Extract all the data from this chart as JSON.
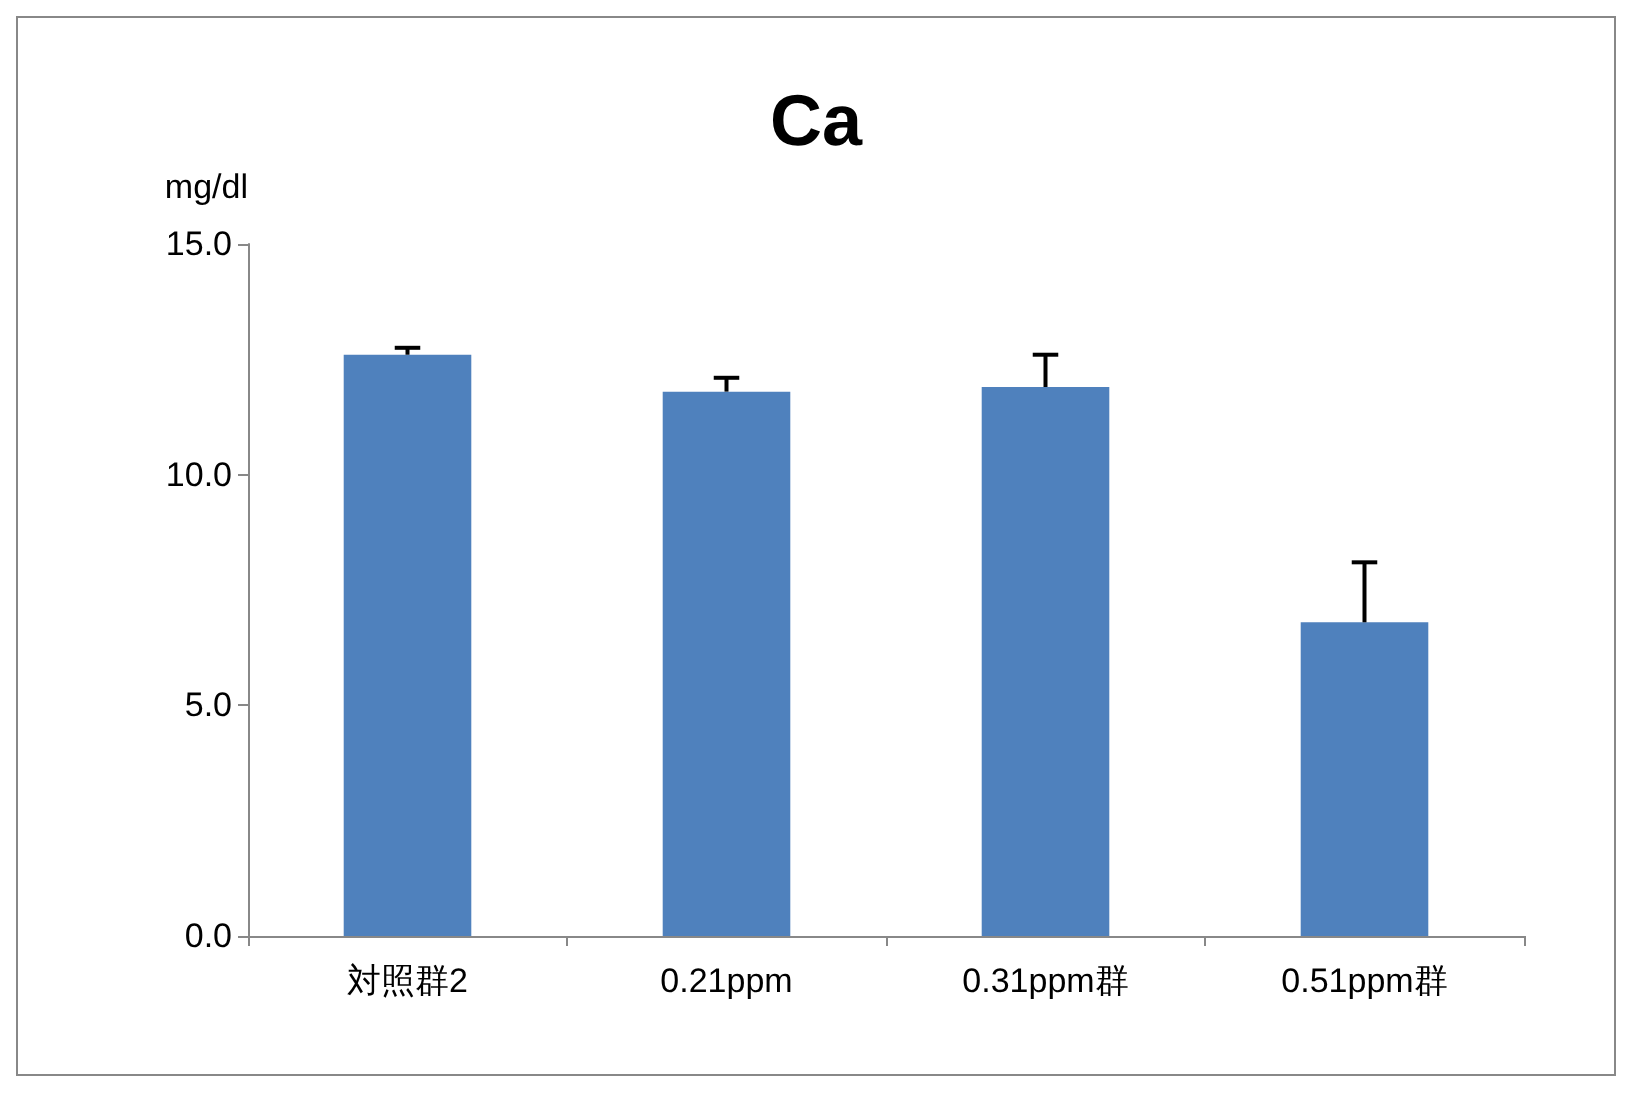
{
  "chart_data": {
    "type": "bar",
    "title": "Ca",
    "ylabel": "mg/dl",
    "categories": [
      "対照群2",
      "0.21ppm",
      "0.31ppm群",
      "0.51ppm群"
    ],
    "values": [
      12.6,
      11.8,
      11.9,
      6.8
    ],
    "errors": [
      [
        12.6,
        12.75
      ],
      [
        11.8,
        12.1
      ],
      [
        11.9,
        12.6
      ],
      [
        6.8,
        8.1
      ]
    ],
    "color": "#4f81bd",
    "ylim": [
      0,
      15
    ],
    "yticks": [
      {
        "value": 0,
        "label": "0.0"
      },
      {
        "value": 5,
        "label": "5.0"
      },
      {
        "value": 10,
        "label": "10.0"
      },
      {
        "value": 15,
        "label": "15.0"
      }
    ],
    "grid": false
  }
}
